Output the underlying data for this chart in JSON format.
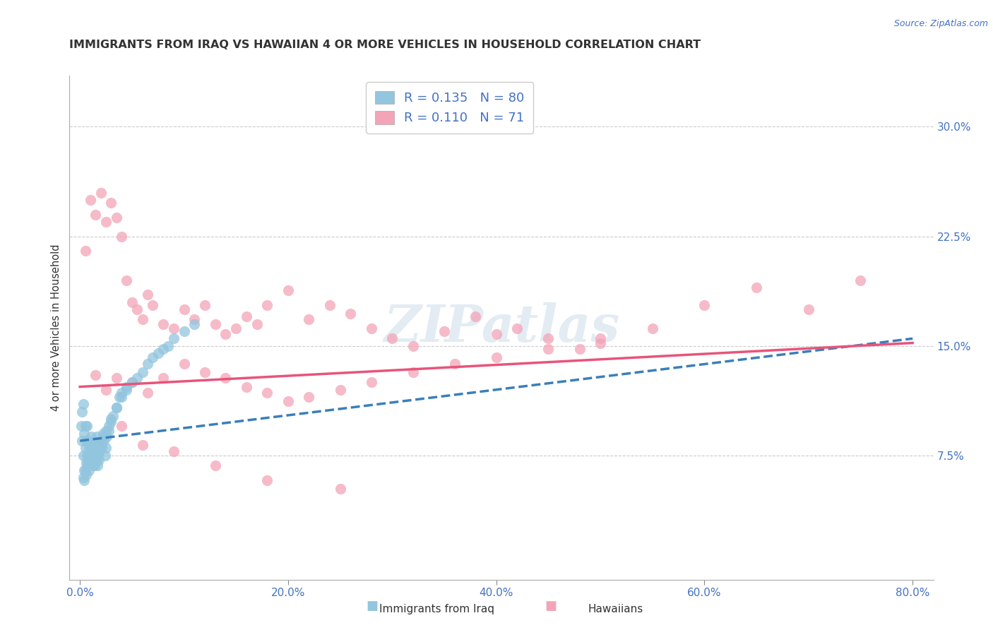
{
  "title": "IMMIGRANTS FROM IRAQ VS HAWAIIAN 4 OR MORE VEHICLES IN HOUSEHOLD CORRELATION CHART",
  "source": "Source: ZipAtlas.com",
  "ylabel": "4 or more Vehicles in Household",
  "yticks": [
    "7.5%",
    "15.0%",
    "22.5%",
    "30.0%"
  ],
  "ytick_vals": [
    0.075,
    0.15,
    0.225,
    0.3
  ],
  "xtick_vals": [
    0.0,
    0.2,
    0.4,
    0.6,
    0.8
  ],
  "xtick_labels": [
    "0.0%",
    "20.0%",
    "40.0%",
    "60.0%",
    "80.0%"
  ],
  "xlim": [
    -0.01,
    0.82
  ],
  "ylim": [
    -0.01,
    0.335
  ],
  "legend1_r": "0.135",
  "legend1_n": "80",
  "legend2_r": "0.110",
  "legend2_n": "71",
  "legend_label1": "Immigrants from Iraq",
  "legend_label2": "Hawaiians",
  "blue_color": "#92c5de",
  "pink_color": "#f4a4b8",
  "blue_line_color": "#3a7fba",
  "pink_line_color": "#e8547a",
  "watermark": "ZIPatlas",
  "blue_scatter_x": [
    0.001,
    0.002,
    0.002,
    0.003,
    0.003,
    0.004,
    0.004,
    0.005,
    0.005,
    0.006,
    0.006,
    0.007,
    0.007,
    0.008,
    0.008,
    0.009,
    0.009,
    0.01,
    0.01,
    0.011,
    0.011,
    0.012,
    0.012,
    0.013,
    0.013,
    0.014,
    0.015,
    0.015,
    0.016,
    0.016,
    0.017,
    0.017,
    0.018,
    0.018,
    0.019,
    0.02,
    0.021,
    0.022,
    0.023,
    0.024,
    0.025,
    0.026,
    0.028,
    0.03,
    0.032,
    0.035,
    0.038,
    0.04,
    0.045,
    0.05,
    0.055,
    0.06,
    0.065,
    0.07,
    0.075,
    0.08,
    0.085,
    0.09,
    0.1,
    0.11,
    0.003,
    0.004,
    0.005,
    0.006,
    0.007,
    0.008,
    0.009,
    0.01,
    0.012,
    0.014,
    0.016,
    0.018,
    0.02,
    0.022,
    0.025,
    0.028,
    0.03,
    0.035,
    0.04,
    0.045
  ],
  "blue_scatter_y": [
    0.095,
    0.105,
    0.085,
    0.075,
    0.11,
    0.09,
    0.065,
    0.08,
    0.095,
    0.07,
    0.085,
    0.075,
    0.095,
    0.085,
    0.07,
    0.08,
    0.075,
    0.082,
    0.072,
    0.078,
    0.088,
    0.068,
    0.075,
    0.082,
    0.07,
    0.078,
    0.072,
    0.082,
    0.075,
    0.088,
    0.078,
    0.068,
    0.082,
    0.072,
    0.078,
    0.085,
    0.08,
    0.09,
    0.085,
    0.075,
    0.08,
    0.088,
    0.092,
    0.098,
    0.102,
    0.108,
    0.115,
    0.118,
    0.122,
    0.125,
    0.128,
    0.132,
    0.138,
    0.142,
    0.145,
    0.148,
    0.15,
    0.155,
    0.16,
    0.165,
    0.06,
    0.058,
    0.065,
    0.062,
    0.068,
    0.072,
    0.065,
    0.07,
    0.075,
    0.068,
    0.072,
    0.078,
    0.082,
    0.088,
    0.092,
    0.095,
    0.1,
    0.108,
    0.115,
    0.12
  ],
  "pink_scatter_x": [
    0.005,
    0.01,
    0.015,
    0.02,
    0.025,
    0.03,
    0.035,
    0.04,
    0.045,
    0.05,
    0.055,
    0.06,
    0.065,
    0.07,
    0.08,
    0.09,
    0.1,
    0.11,
    0.12,
    0.13,
    0.14,
    0.15,
    0.16,
    0.17,
    0.18,
    0.2,
    0.22,
    0.24,
    0.26,
    0.28,
    0.3,
    0.32,
    0.35,
    0.38,
    0.4,
    0.42,
    0.45,
    0.48,
    0.5,
    0.55,
    0.6,
    0.65,
    0.7,
    0.75,
    0.015,
    0.025,
    0.035,
    0.05,
    0.065,
    0.08,
    0.1,
    0.12,
    0.14,
    0.16,
    0.18,
    0.2,
    0.22,
    0.25,
    0.28,
    0.32,
    0.36,
    0.4,
    0.45,
    0.5,
    0.02,
    0.04,
    0.06,
    0.09,
    0.13,
    0.18,
    0.25
  ],
  "pink_scatter_y": [
    0.215,
    0.25,
    0.24,
    0.255,
    0.235,
    0.248,
    0.238,
    0.225,
    0.195,
    0.18,
    0.175,
    0.168,
    0.185,
    0.178,
    0.165,
    0.162,
    0.175,
    0.168,
    0.178,
    0.165,
    0.158,
    0.162,
    0.17,
    0.165,
    0.178,
    0.188,
    0.168,
    0.178,
    0.172,
    0.162,
    0.155,
    0.15,
    0.16,
    0.17,
    0.158,
    0.162,
    0.155,
    0.148,
    0.152,
    0.162,
    0.178,
    0.19,
    0.175,
    0.195,
    0.13,
    0.12,
    0.128,
    0.125,
    0.118,
    0.128,
    0.138,
    0.132,
    0.128,
    0.122,
    0.118,
    0.112,
    0.115,
    0.12,
    0.125,
    0.132,
    0.138,
    0.142,
    0.148,
    0.155,
    0.085,
    0.095,
    0.082,
    0.078,
    0.068,
    0.058,
    0.052
  ],
  "blue_trendline_x": [
    0.0,
    0.8
  ],
  "blue_trendline_y_start": 0.085,
  "blue_trendline_y_end": 0.155,
  "pink_trendline_x": [
    0.0,
    0.8
  ],
  "pink_trendline_y_start": 0.122,
  "pink_trendline_y_end": 0.152
}
